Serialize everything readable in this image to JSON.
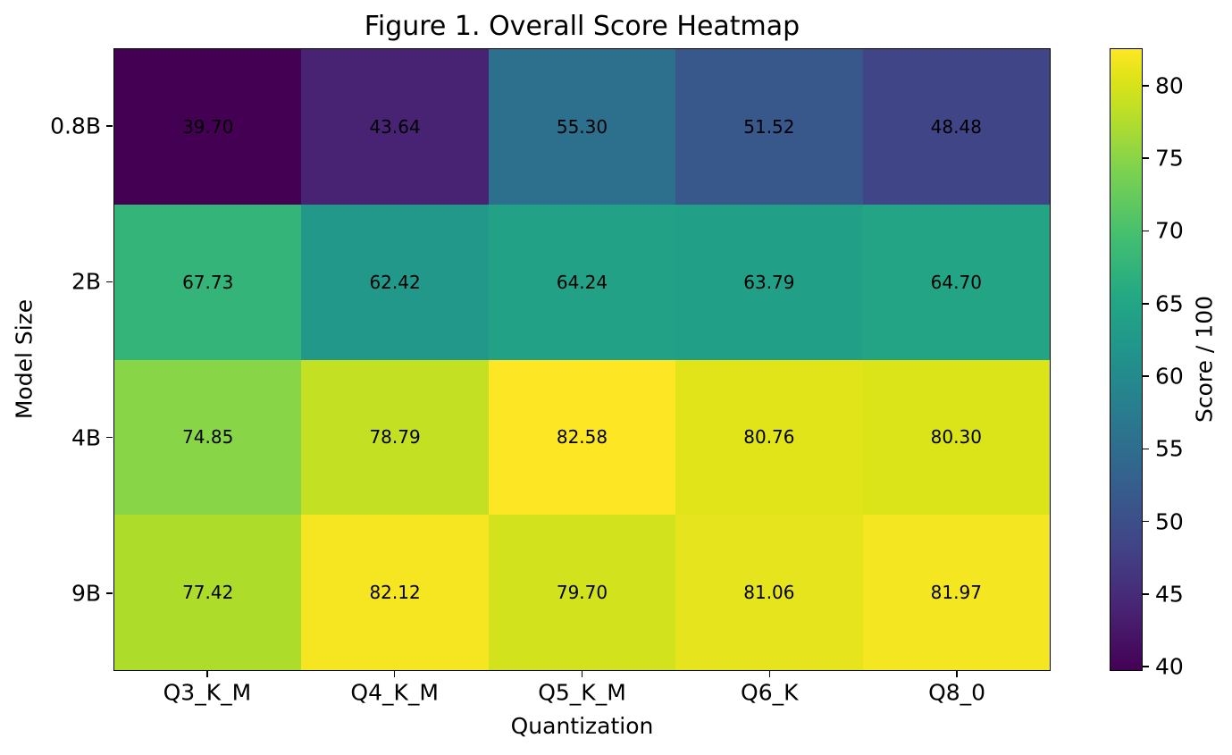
{
  "chart_data": {
    "type": "heatmap",
    "title": "Figure 1. Overall Score Heatmap",
    "xlabel": "Quantization",
    "ylabel": "Model Size",
    "x_categories": [
      "Q3_K_M",
      "Q4_K_M",
      "Q5_K_M",
      "Q6_K",
      "Q8_0"
    ],
    "y_categories": [
      "0.8B",
      "2B",
      "4B",
      "9B"
    ],
    "values": [
      [
        39.7,
        43.64,
        55.3,
        51.52,
        48.48
      ],
      [
        67.73,
        62.42,
        64.24,
        63.79,
        64.7
      ],
      [
        74.85,
        78.79,
        82.58,
        80.76,
        80.3
      ],
      [
        77.42,
        82.12,
        79.7,
        81.06,
        81.97
      ]
    ],
    "cell_labels": [
      [
        "39.70",
        "43.64",
        "55.30",
        "51.52",
        "48.48"
      ],
      [
        "67.73",
        "62.42",
        "64.24",
        "63.79",
        "64.70"
      ],
      [
        "74.85",
        "78.79",
        "82.58",
        "80.76",
        "80.30"
      ],
      [
        "77.42",
        "82.12",
        "79.70",
        "81.06",
        "81.97"
      ]
    ],
    "cell_colors": [
      [
        "#440154",
        "#482374",
        "#2d708e",
        "#38588c",
        "#404587"
      ],
      [
        "#34b479",
        "#21988a",
        "#22a186",
        "#229f87",
        "#22a485"
      ],
      [
        "#89d548",
        "#c4e023",
        "#fde725",
        "#e2e41a",
        "#dbe319"
      ],
      [
        "#aedc2b",
        "#f6e622",
        "#d2e21d",
        "#e6e41c",
        "#f4e621"
      ]
    ],
    "colormap": "viridis",
    "vmin": 39.7,
    "vmax": 82.58,
    "grid": false,
    "text_color": "#000000",
    "background_color": "#ffffff",
    "colorbar": {
      "label": "Score / 100",
      "ticks": [
        40,
        45,
        50,
        55,
        60,
        65,
        70,
        75,
        80
      ],
      "gradient_stops": [
        {
          "pos": 0.0,
          "color": "#440154"
        },
        {
          "pos": 0.1,
          "color": "#482475"
        },
        {
          "pos": 0.2,
          "color": "#414487"
        },
        {
          "pos": 0.3,
          "color": "#355f8d"
        },
        {
          "pos": 0.4,
          "color": "#2a788e"
        },
        {
          "pos": 0.5,
          "color": "#21918c"
        },
        {
          "pos": 0.6,
          "color": "#22a884"
        },
        {
          "pos": 0.7,
          "color": "#44bf70"
        },
        {
          "pos": 0.8,
          "color": "#7ad151"
        },
        {
          "pos": 0.9,
          "color": "#bddf26"
        },
        {
          "pos": 0.95,
          "color": "#dde318"
        },
        {
          "pos": 1.0,
          "color": "#fde725"
        }
      ]
    }
  }
}
